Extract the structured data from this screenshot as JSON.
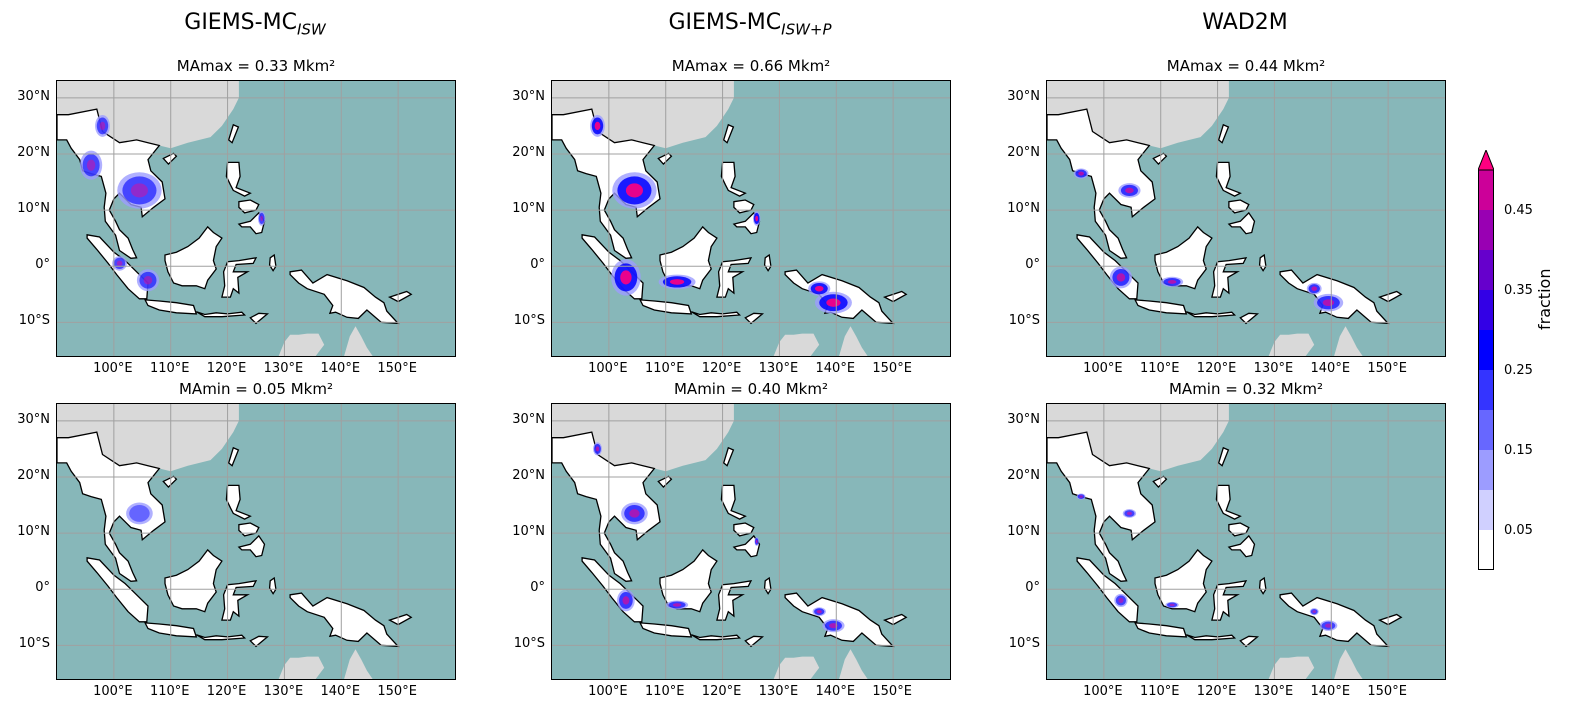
{
  "columns": [
    {
      "title_main": "GIEMS-MC",
      "title_sub": "ISW"
    },
    {
      "title_main": "GIEMS-MC",
      "title_sub": "ISW+P"
    },
    {
      "title_main": "WAD2M",
      "title_sub": ""
    }
  ],
  "panels": [
    {
      "label": "MAmax = 0.33 Mkm²",
      "intensity": 0.4
    },
    {
      "label": "MAmax = 0.66 Mkm²",
      "intensity": 0.9
    },
    {
      "label": "MAmax = 0.44 Mkm²",
      "intensity": 0.6
    },
    {
      "label": "MAmin = 0.05 Mkm²",
      "intensity": 0.05
    },
    {
      "label": "MAmin = 0.40 Mkm²",
      "intensity": 0.55
    },
    {
      "label": "MAmin = 0.32 Mkm²",
      "intensity": 0.45
    }
  ],
  "lat_ticks": [
    "30°N",
    "20°N",
    "10°N",
    "0°",
    "10°S"
  ],
  "lon_ticks": [
    "100°E",
    "110°E",
    "120°E",
    "130°E",
    "140°E",
    "150°E"
  ],
  "colorbar": {
    "label": "fraction",
    "ticks": [
      "0.45",
      "0.35",
      "0.25",
      "0.15",
      "0.05"
    ],
    "colors": [
      "#ffffff",
      "#d0d0ff",
      "#9c9cff",
      "#6767ff",
      "#3434ff",
      "#0000ff",
      "#3300e6",
      "#6600cc",
      "#9900b3",
      "#cc0099",
      "#ff0080"
    ]
  },
  "colors": {
    "ocean": "#87b7b9",
    "land_outside": "#d9d9d9",
    "land": "#ffffff",
    "grid": "#a0a0a0"
  }
}
